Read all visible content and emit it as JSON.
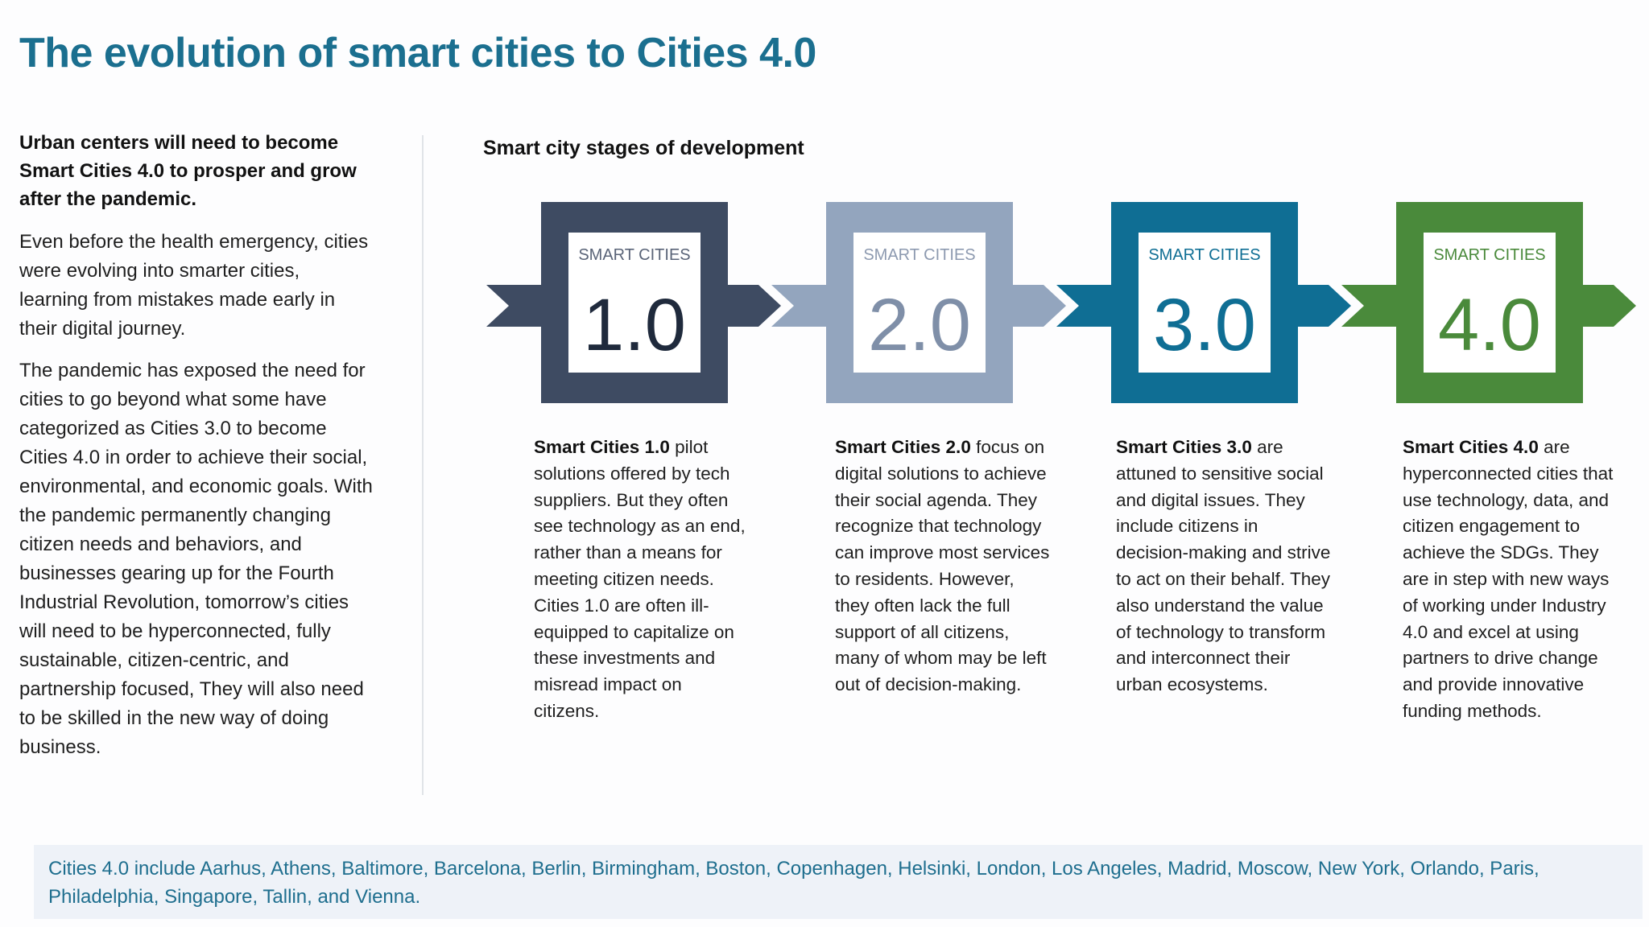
{
  "title": "The evolution of smart cities to Cities 4.0",
  "left": {
    "heading": "Urban centers will need to become Smart Cities 4.0 to prosper and grow after the pandemic.",
    "para1": "Even before the health emergency, cities were evolving into smarter cities, learning from mistakes made early in their digital journey.",
    "para2": "The pandemic has exposed the need for cities to go beyond what some have categorized as Cities 3.0 to become Cities 4.0 in order to achieve their social, environmental, and economic goals. With the pandemic permanently changing citizen needs and behaviors, and businesses gearing up for the Fourth Industrial Revolution, tomorrow’s cities will need to be hyperconnected, fully sustainable, citizen-centric, and partnership focused, They will also need to be skilled in the new way of doing business."
  },
  "stages_heading": "Smart city stages of development",
  "stages": [
    {
      "label": "SMART CITIES",
      "version": "1.0",
      "color": "#3e4b62",
      "text_color": "#1f2a3c",
      "label_color": "#5a6478",
      "desc_bold": "Smart Cities 1.0",
      "desc": " pilot solutions offered by tech suppliers. But they often see technology as an end, rather than a means for meeting citizen needs. Cities 1.0 are often ill-equipped to capitalize on these investments and misread impact on citizens."
    },
    {
      "label": "SMART CITIES",
      "version": "2.0",
      "color": "#93a5be",
      "text_color": "#7f8fa8",
      "label_color": "#8d9ab0",
      "desc_bold": "Smart Cities 2.0",
      "desc": " focus on digital solutions to achieve their social agenda. They recognize that technology can improve most services to residents. However, they often lack the full support of all citizens, many of whom may be left out of decision-making."
    },
    {
      "label": "SMART CITIES",
      "version": "3.0",
      "color": "#0f6e94",
      "text_color": "#0f6e94",
      "label_color": "#0f6e94",
      "desc_bold": "Smart Cities 3.0",
      "desc": " are attuned to sensitive social and digital issues. They include citizens in decision-making and strive to act on their behalf. They also understand the value of technology to transform and interconnect their urban ecosystems."
    },
    {
      "label": "SMART CITIES",
      "version": "4.0",
      "color": "#4a8a3b",
      "text_color": "#4a8a3b",
      "label_color": "#4a8a3b",
      "desc_bold": "Smart Cities 4.0",
      "desc": " are hyperconnected cities that use technology, data, and citizen engagement to achieve the SDGs. They are in step with new ways of working under Industry 4.0 and excel at using partners to drive change and provide innovative funding methods."
    }
  ],
  "footer": "Cities 4.0 include Aarhus, Athens, Baltimore, Barcelona, Berlin, Birmingham, Boston, Copenhagen, Helsinki, London, Los Angeles, Madrid, Moscow, New York, Orlando, Paris, Philadelphia, Singapore, Tallin, and Vienna."
}
